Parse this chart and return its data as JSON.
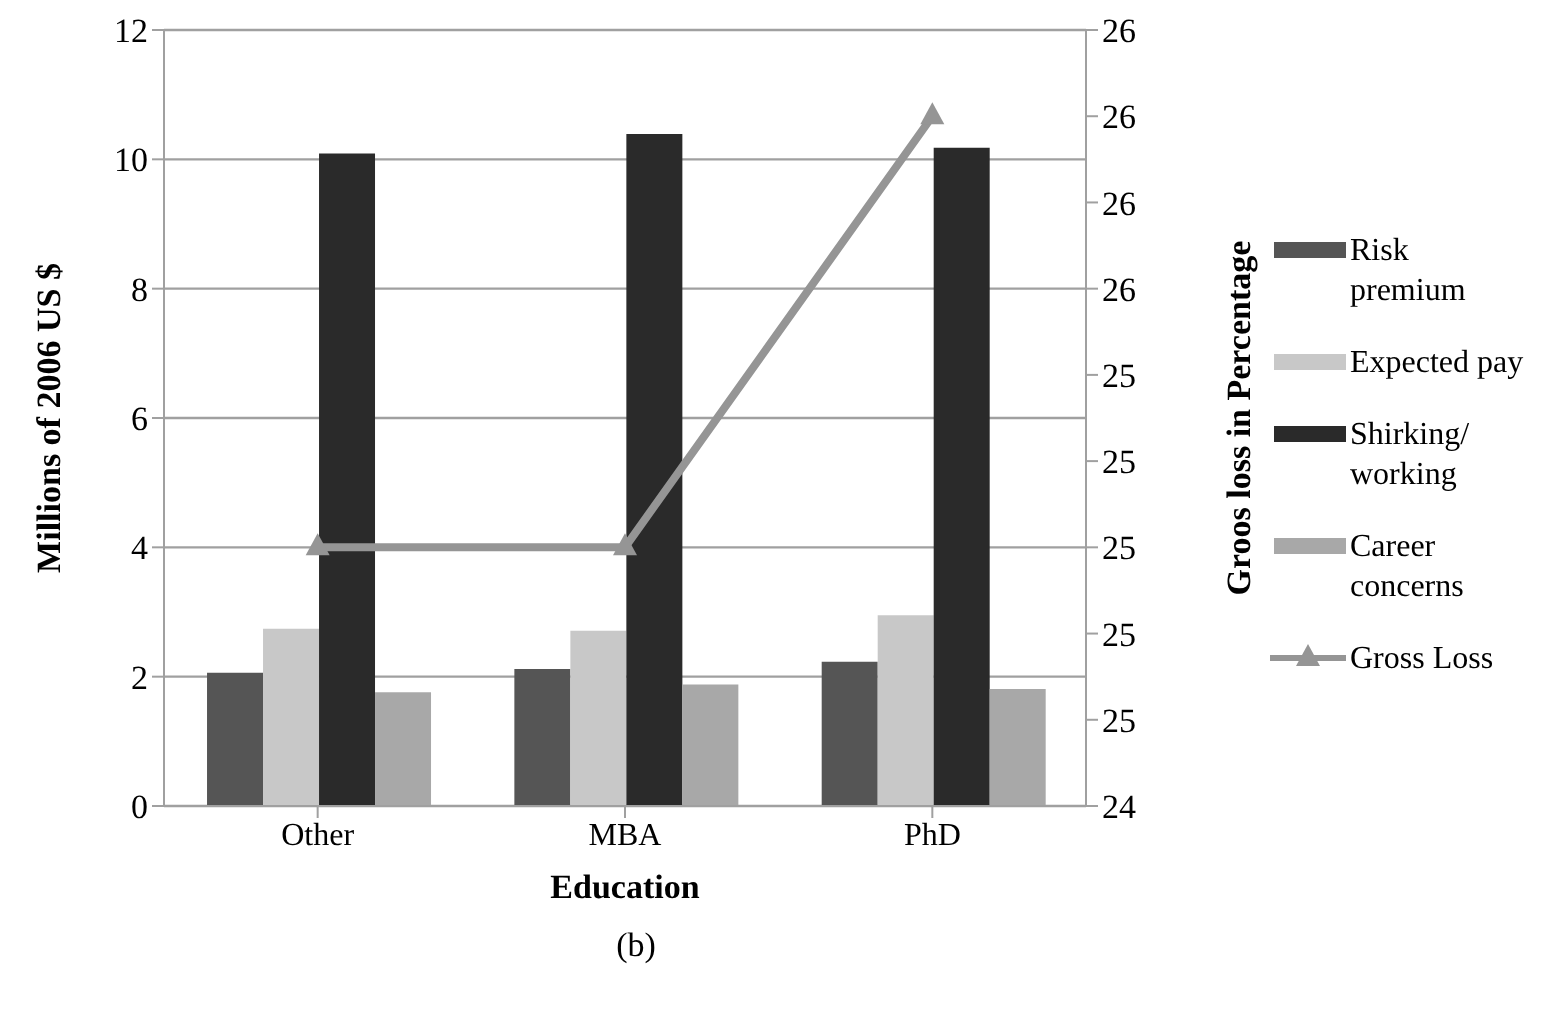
{
  "chart_data": {
    "type": "bar",
    "xlabel": "Education",
    "ylabel": "Millions of 2006 US $",
    "y2label": "Groos loss in Percentage",
    "categories": [
      "Other",
      "MBA",
      "PhD"
    ],
    "series": [
      {
        "name": "Risk premium",
        "color": "#555555",
        "values": [
          2.06,
          2.12,
          2.23
        ]
      },
      {
        "name": "Expected pay",
        "color": "#c8c8c8",
        "values": [
          2.74,
          2.71,
          2.95
        ]
      },
      {
        "name": "Shirking/ working",
        "color": "#2a2a2a",
        "values": [
          10.09,
          10.39,
          10.18
        ]
      },
      {
        "name": "Career concerns",
        "color": "#a8a8a8",
        "values": [
          1.76,
          1.88,
          1.81
        ]
      },
      {
        "name": "Gross Loss",
        "type": "line",
        "axis": "y2",
        "marker": "triangle",
        "color": "#959595",
        "values": [
          25.0,
          25.0,
          26.0
        ]
      }
    ],
    "ylim": [
      0,
      12
    ],
    "yticks": [
      0,
      2,
      4,
      6,
      8,
      10,
      12
    ],
    "y2lim": [
      24.4,
      26.2
    ],
    "y2ticks": [
      {
        "value": 24.4,
        "label": "24"
      },
      {
        "value": 24.6,
        "label": "25"
      },
      {
        "value": 24.8,
        "label": "25"
      },
      {
        "value": 25.0,
        "label": "25"
      },
      {
        "value": 25.2,
        "label": "25"
      },
      {
        "value": 25.4,
        "label": "25"
      },
      {
        "value": 25.6,
        "label": "26"
      },
      {
        "value": 25.8,
        "label": "26"
      },
      {
        "value": 26.0,
        "label": "26"
      },
      {
        "value": 26.2,
        "label": "26"
      }
    ],
    "grid": "y",
    "legend": "right",
    "annotations": [
      "(b)"
    ]
  }
}
